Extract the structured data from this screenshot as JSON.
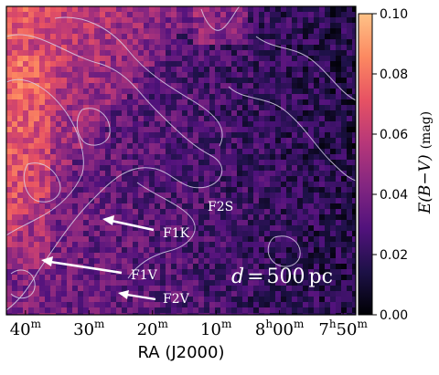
{
  "chart_data": {
    "type": "heatmap",
    "title": "",
    "xlabel": "RA (J2000)",
    "x_tick_labels": [
      {
        "value": 40,
        "label": "40",
        "sup": "m"
      },
      {
        "value": 30,
        "label": "30",
        "sup": "m"
      },
      {
        "value": 20,
        "label": "20",
        "sup": "m"
      },
      {
        "value": 10,
        "label": "10",
        "sup": "m"
      },
      {
        "value": 0,
        "label": "8",
        "sup": "h",
        "rest": "00",
        "sup2": "m"
      },
      {
        "value": -10,
        "label": "7",
        "sup": "h",
        "rest": "50",
        "sup2": "m"
      }
    ],
    "xlim": [
      43,
      -12
    ],
    "colorbar": {
      "label": "E(B−V) (mag)",
      "label_main": "E(B−V)",
      "label_unit": "(mag)",
      "range": [
        0.0,
        0.1
      ],
      "ticks": [
        0.0,
        0.02,
        0.04,
        0.06,
        0.08,
        0.1
      ],
      "tick_labels": [
        "0.00",
        "0.02",
        "0.04",
        "0.06",
        "0.08",
        "0.10"
      ],
      "colormap": [
        "#000004",
        "#1d1147",
        "#51127c",
        "#832681",
        "#b73779",
        "#e75263",
        "#fc8961",
        "#fec287"
      ]
    },
    "annotations": [
      {
        "text": "F1K",
        "kind": "label-with-arrow"
      },
      {
        "text": "F1V",
        "kind": "label-with-arrow"
      },
      {
        "text": "F2V",
        "kind": "label-with-arrow"
      },
      {
        "text": "F2S",
        "kind": "label"
      }
    ],
    "distance_label": {
      "var": "d",
      "eq": "=",
      "value": "500",
      "unit": "pc"
    },
    "grid": false
  }
}
